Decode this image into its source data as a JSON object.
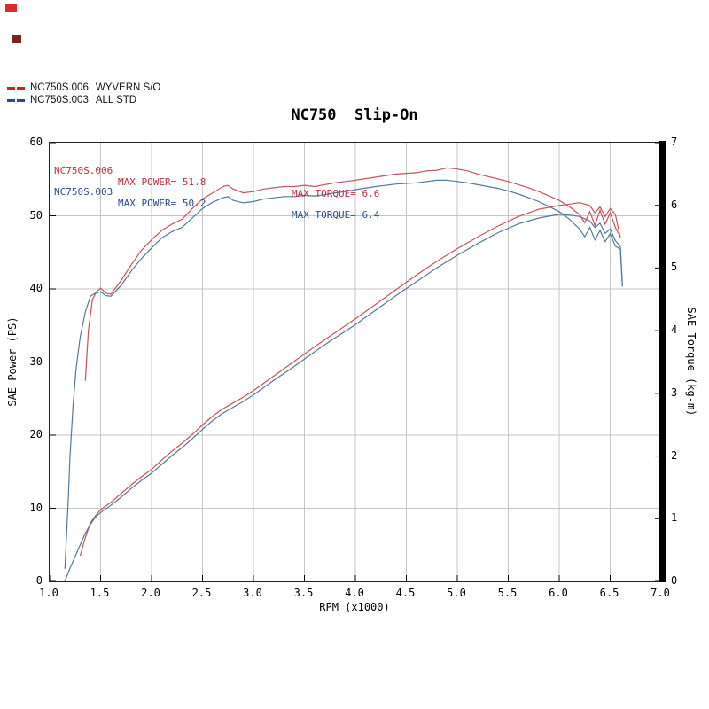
{
  "artifacts": {
    "mark1_color": "#dd2b2b",
    "mark2_color": "#7c2222"
  },
  "legend": {
    "items": [
      {
        "code": "NC750S.006",
        "label": "WYVERN S/O",
        "color": "#cc2222"
      },
      {
        "code": "NC750S.003",
        "label": "ALL STD",
        "color": "#2b4d7e"
      }
    ]
  },
  "chart_data": {
    "type": "line",
    "title": "NC750  Slip-On",
    "xlabel": "RPM (x1000)",
    "ylabel_left": "SAE Power (PS)",
    "ylabel_right": "SAE Torque (kg-m)",
    "x_range": [
      1.0,
      7.0
    ],
    "y_left_range": [
      0,
      60
    ],
    "y_right_range": [
      0,
      7
    ],
    "grid": true,
    "grid_color": "#c6c6c6",
    "grid_x": [
      1.5,
      2.0,
      2.5,
      3.0,
      3.5,
      4.0,
      4.5,
      5.0,
      5.5,
      6.0,
      6.5
    ],
    "grid_y": [
      10,
      20,
      30,
      40,
      50
    ],
    "x_ticks": [
      "1.0",
      "1.5",
      "2.0",
      "2.5",
      "3.0",
      "3.5",
      "4.0",
      "4.5",
      "5.0",
      "5.5",
      "6.0",
      "6.5",
      "7.0"
    ],
    "y_left_ticks": [
      "0",
      "10",
      "20",
      "30",
      "40",
      "50",
      "60"
    ],
    "y_right_ticks": [
      "0",
      "1",
      "2",
      "3",
      "4",
      "5",
      "6",
      "7"
    ],
    "annotations": [
      {
        "series": "NC750S.006",
        "power_text": "MAX POWER= 51.8",
        "torque_text": "MAX TORQUE= 6.6",
        "color": "#c03040"
      },
      {
        "series": "NC750S.003",
        "power_text": "MAX POWER= 50.2",
        "torque_text": "MAX TORQUE= 6.4",
        "color": "#2d4f86"
      }
    ],
    "series": [
      {
        "id": "power-curve-wyvern",
        "name": "NC750S.006 power (PS)",
        "axis": "left",
        "color": "#c9535a",
        "points": [
          [
            1.3,
            3.5
          ],
          [
            1.35,
            6.0
          ],
          [
            1.4,
            8.0
          ],
          [
            1.45,
            9.0
          ],
          [
            1.5,
            9.8
          ],
          [
            1.6,
            10.8
          ],
          [
            1.7,
            12.0
          ],
          [
            1.8,
            13.2
          ],
          [
            1.9,
            14.3
          ],
          [
            2.0,
            15.3
          ],
          [
            2.1,
            16.6
          ],
          [
            2.2,
            17.8
          ],
          [
            2.3,
            18.9
          ],
          [
            2.4,
            20.1
          ],
          [
            2.5,
            21.4
          ],
          [
            2.6,
            22.6
          ],
          [
            2.7,
            23.6
          ],
          [
            2.8,
            24.4
          ],
          [
            2.9,
            25.2
          ],
          [
            3.0,
            26.1
          ],
          [
            3.2,
            28.1
          ],
          [
            3.4,
            30.1
          ],
          [
            3.6,
            32.1
          ],
          [
            3.8,
            34.0
          ],
          [
            4.0,
            35.9
          ],
          [
            4.2,
            37.9
          ],
          [
            4.4,
            39.9
          ],
          [
            4.6,
            41.9
          ],
          [
            4.8,
            43.8
          ],
          [
            5.0,
            45.5
          ],
          [
            5.2,
            47.1
          ],
          [
            5.4,
            48.6
          ],
          [
            5.6,
            49.9
          ],
          [
            5.8,
            50.9
          ],
          [
            6.0,
            51.4
          ],
          [
            6.1,
            51.6
          ],
          [
            6.2,
            51.8
          ],
          [
            6.3,
            51.4
          ],
          [
            6.35,
            50.4
          ],
          [
            6.4,
            51.2
          ],
          [
            6.45,
            49.9
          ],
          [
            6.5,
            51.0
          ],
          [
            6.55,
            50.2
          ],
          [
            6.6,
            47.0
          ]
        ]
      },
      {
        "id": "power-curve-std",
        "name": "NC750S.003 power (PS)",
        "axis": "left",
        "color": "#537a9b",
        "points": [
          [
            1.15,
            0.0
          ],
          [
            1.2,
            1.8
          ],
          [
            1.25,
            3.4
          ],
          [
            1.3,
            5.0
          ],
          [
            1.35,
            6.6
          ],
          [
            1.4,
            7.8
          ],
          [
            1.45,
            8.8
          ],
          [
            1.5,
            9.4
          ],
          [
            1.6,
            10.4
          ],
          [
            1.7,
            11.5
          ],
          [
            1.8,
            12.7
          ],
          [
            1.9,
            13.8
          ],
          [
            2.0,
            14.8
          ],
          [
            2.1,
            16.0
          ],
          [
            2.2,
            17.2
          ],
          [
            2.3,
            18.3
          ],
          [
            2.4,
            19.5
          ],
          [
            2.5,
            20.8
          ],
          [
            2.6,
            22.0
          ],
          [
            2.7,
            23.0
          ],
          [
            2.8,
            23.8
          ],
          [
            2.9,
            24.6
          ],
          [
            3.0,
            25.5
          ],
          [
            3.2,
            27.5
          ],
          [
            3.4,
            29.4
          ],
          [
            3.6,
            31.4
          ],
          [
            3.8,
            33.3
          ],
          [
            4.0,
            35.1
          ],
          [
            4.2,
            37.1
          ],
          [
            4.4,
            39.1
          ],
          [
            4.6,
            41.0
          ],
          [
            4.8,
            42.9
          ],
          [
            5.0,
            44.6
          ],
          [
            5.2,
            46.2
          ],
          [
            5.4,
            47.7
          ],
          [
            5.6,
            48.9
          ],
          [
            5.8,
            49.7
          ],
          [
            6.0,
            50.2
          ],
          [
            6.1,
            50.1
          ],
          [
            6.2,
            49.9
          ],
          [
            6.3,
            49.3
          ],
          [
            6.35,
            48.4
          ],
          [
            6.4,
            49.0
          ],
          [
            6.45,
            47.6
          ],
          [
            6.5,
            48.2
          ],
          [
            6.55,
            46.6
          ],
          [
            6.6,
            45.8
          ],
          [
            6.62,
            40.5
          ]
        ]
      },
      {
        "id": "torque-curve-wyvern",
        "name": "NC750S.006 torque (kg-m)",
        "axis": "right",
        "color": "#c9535a",
        "points": [
          [
            1.35,
            3.2
          ],
          [
            1.38,
            4.0
          ],
          [
            1.42,
            4.5
          ],
          [
            1.46,
            4.62
          ],
          [
            1.5,
            4.68
          ],
          [
            1.55,
            4.6
          ],
          [
            1.6,
            4.58
          ],
          [
            1.7,
            4.8
          ],
          [
            1.8,
            5.05
          ],
          [
            1.9,
            5.28
          ],
          [
            2.0,
            5.45
          ],
          [
            2.1,
            5.6
          ],
          [
            2.2,
            5.7
          ],
          [
            2.3,
            5.78
          ],
          [
            2.4,
            5.95
          ],
          [
            2.5,
            6.1
          ],
          [
            2.6,
            6.2
          ],
          [
            2.7,
            6.3
          ],
          [
            2.75,
            6.32
          ],
          [
            2.8,
            6.26
          ],
          [
            2.9,
            6.2
          ],
          [
            3.0,
            6.22
          ],
          [
            3.1,
            6.26
          ],
          [
            3.2,
            6.28
          ],
          [
            3.3,
            6.3
          ],
          [
            3.4,
            6.3
          ],
          [
            3.5,
            6.32
          ],
          [
            3.6,
            6.3
          ],
          [
            3.7,
            6.33
          ],
          [
            3.8,
            6.36
          ],
          [
            3.9,
            6.38
          ],
          [
            4.0,
            6.4
          ],
          [
            4.2,
            6.45
          ],
          [
            4.4,
            6.5
          ],
          [
            4.6,
            6.52
          ],
          [
            4.7,
            6.55
          ],
          [
            4.8,
            6.56
          ],
          [
            4.9,
            6.6
          ],
          [
            5.0,
            6.58
          ],
          [
            5.1,
            6.55
          ],
          [
            5.2,
            6.5
          ],
          [
            5.3,
            6.46
          ],
          [
            5.4,
            6.42
          ],
          [
            5.5,
            6.38
          ],
          [
            5.6,
            6.33
          ],
          [
            5.7,
            6.28
          ],
          [
            5.8,
            6.22
          ],
          [
            5.9,
            6.15
          ],
          [
            6.0,
            6.08
          ],
          [
            6.1,
            5.98
          ],
          [
            6.2,
            5.85
          ],
          [
            6.25,
            5.72
          ],
          [
            6.3,
            5.9
          ],
          [
            6.35,
            5.68
          ],
          [
            6.4,
            5.92
          ],
          [
            6.45,
            5.7
          ],
          [
            6.5,
            5.88
          ],
          [
            6.55,
            5.65
          ],
          [
            6.58,
            5.55
          ]
        ]
      },
      {
        "id": "torque-curve-std",
        "name": "NC750S.003 torque (kg-m)",
        "axis": "right",
        "color": "#537a9b",
        "points": [
          [
            1.15,
            0.2
          ],
          [
            1.18,
            1.2
          ],
          [
            1.2,
            2.0
          ],
          [
            1.23,
            2.8
          ],
          [
            1.26,
            3.4
          ],
          [
            1.3,
            3.9
          ],
          [
            1.35,
            4.3
          ],
          [
            1.4,
            4.55
          ],
          [
            1.45,
            4.6
          ],
          [
            1.5,
            4.62
          ],
          [
            1.55,
            4.56
          ],
          [
            1.6,
            4.55
          ],
          [
            1.7,
            4.72
          ],
          [
            1.8,
            4.95
          ],
          [
            1.9,
            5.15
          ],
          [
            2.0,
            5.32
          ],
          [
            2.1,
            5.48
          ],
          [
            2.2,
            5.58
          ],
          [
            2.3,
            5.65
          ],
          [
            2.4,
            5.8
          ],
          [
            2.5,
            5.95
          ],
          [
            2.6,
            6.05
          ],
          [
            2.7,
            6.12
          ],
          [
            2.75,
            6.14
          ],
          [
            2.8,
            6.08
          ],
          [
            2.9,
            6.04
          ],
          [
            3.0,
            6.06
          ],
          [
            3.1,
            6.1
          ],
          [
            3.2,
            6.12
          ],
          [
            3.3,
            6.14
          ],
          [
            3.4,
            6.14
          ],
          [
            3.5,
            6.16
          ],
          [
            3.6,
            6.15
          ],
          [
            3.7,
            6.17
          ],
          [
            3.8,
            6.2
          ],
          [
            3.9,
            6.22
          ],
          [
            4.0,
            6.25
          ],
          [
            4.2,
            6.3
          ],
          [
            4.4,
            6.34
          ],
          [
            4.6,
            6.36
          ],
          [
            4.8,
            6.4
          ],
          [
            4.9,
            6.4
          ],
          [
            5.0,
            6.38
          ],
          [
            5.1,
            6.36
          ],
          [
            5.2,
            6.33
          ],
          [
            5.3,
            6.3
          ],
          [
            5.4,
            6.27
          ],
          [
            5.5,
            6.23
          ],
          [
            5.6,
            6.18
          ],
          [
            5.7,
            6.12
          ],
          [
            5.8,
            6.06
          ],
          [
            5.9,
            5.98
          ],
          [
            6.0,
            5.9
          ],
          [
            6.1,
            5.78
          ],
          [
            6.2,
            5.62
          ],
          [
            6.25,
            5.5
          ],
          [
            6.3,
            5.65
          ],
          [
            6.35,
            5.45
          ],
          [
            6.4,
            5.6
          ],
          [
            6.45,
            5.42
          ],
          [
            6.5,
            5.55
          ],
          [
            6.55,
            5.35
          ],
          [
            6.6,
            5.3
          ],
          [
            6.62,
            4.7
          ]
        ]
      }
    ]
  }
}
